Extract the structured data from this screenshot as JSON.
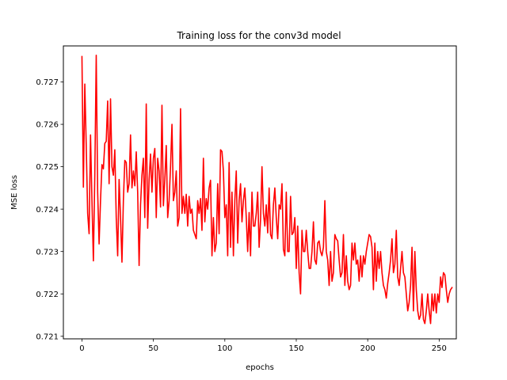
{
  "chart_data": {
    "type": "line",
    "title": "Training loss for the conv3d model",
    "xlabel": "epochs",
    "ylabel": "MSE loss",
    "xlim": [
      -13,
      262
    ],
    "ylim": [
      0.72094,
      0.72785
    ],
    "xticks": [
      0,
      50,
      100,
      150,
      200,
      250
    ],
    "xtick_labels": [
      "0",
      "50",
      "100",
      "150",
      "200",
      "250"
    ],
    "yticks": [
      0.721,
      0.722,
      0.723,
      0.724,
      0.725,
      0.726,
      0.727
    ],
    "ytick_labels": [
      "0.721",
      "0.722",
      "0.723",
      "0.724",
      "0.725",
      "0.726",
      "0.727"
    ],
    "grid": false,
    "legend": "none",
    "series": [
      {
        "color": "#ff0000",
        "x_start": 0,
        "x_step": 1,
        "values": [
          0.7276,
          0.72452,
          0.72695,
          0.7255,
          0.7239,
          0.72342,
          0.72575,
          0.7242,
          0.72278,
          0.7248,
          0.72763,
          0.7244,
          0.72318,
          0.7242,
          0.72505,
          0.72495,
          0.72555,
          0.7256,
          0.72655,
          0.7246,
          0.7266,
          0.725,
          0.7248,
          0.7254,
          0.7238,
          0.7229,
          0.7247,
          0.7238,
          0.72275,
          0.7242,
          0.72515,
          0.7251,
          0.7244,
          0.7246,
          0.72575,
          0.7245,
          0.7249,
          0.72455,
          0.72535,
          0.7244,
          0.72267,
          0.7241,
          0.7248,
          0.7252,
          0.7238,
          0.72648,
          0.72355,
          0.7247,
          0.7253,
          0.7244,
          0.7252,
          0.72543,
          0.7238,
          0.7252,
          0.7249,
          0.72405,
          0.72645,
          0.72408,
          0.7247,
          0.7255,
          0.7238,
          0.7242,
          0.725,
          0.726,
          0.7242,
          0.7244,
          0.7249,
          0.7236,
          0.7238,
          0.72637,
          0.7239,
          0.7243,
          0.7239,
          0.72435,
          0.7236,
          0.7243,
          0.7239,
          0.724,
          0.7235,
          0.7234,
          0.7233,
          0.7242,
          0.7239,
          0.72425,
          0.7235,
          0.7252,
          0.7237,
          0.72425,
          0.724,
          0.7245,
          0.72468,
          0.7229,
          0.7238,
          0.723,
          0.7232,
          0.7246,
          0.72342,
          0.7254,
          0.72536,
          0.7249,
          0.7238,
          0.7241,
          0.7229,
          0.7251,
          0.7231,
          0.7244,
          0.7229,
          0.7242,
          0.7249,
          0.7232,
          0.7242,
          0.7246,
          0.7237,
          0.7242,
          0.7245,
          0.7238,
          0.723,
          0.72392,
          0.7229,
          0.7244,
          0.7236,
          0.7236,
          0.7239,
          0.7244,
          0.7231,
          0.72375,
          0.725,
          0.7239,
          0.7236,
          0.7241,
          0.72344,
          0.7245,
          0.7234,
          0.7233,
          0.7241,
          0.7245,
          0.7238,
          0.7233,
          0.7241,
          0.724,
          0.7246,
          0.72305,
          0.7229,
          0.7244,
          0.723,
          0.723,
          0.7243,
          0.7234,
          0.72345,
          0.7238,
          0.7226,
          0.7236,
          0.7225,
          0.722,
          0.7235,
          0.723,
          0.723,
          0.7235,
          0.723,
          0.7226,
          0.7226,
          0.723,
          0.7237,
          0.7228,
          0.7227,
          0.7232,
          0.72325,
          0.723,
          0.7229,
          0.7231,
          0.7242,
          0.723,
          0.7228,
          0.7222,
          0.723,
          0.7223,
          0.7225,
          0.7234,
          0.7233,
          0.72325,
          0.7228,
          0.7224,
          0.7225,
          0.7234,
          0.7222,
          0.7229,
          0.7223,
          0.7221,
          0.7222,
          0.7232,
          0.7228,
          0.7232,
          0.7227,
          0.7228,
          0.7223,
          0.7229,
          0.7224,
          0.7229,
          0.7227,
          0.723,
          0.7232,
          0.7234,
          0.72335,
          0.7231,
          0.7221,
          0.7232,
          0.7223,
          0.723,
          0.7226,
          0.723,
          0.7225,
          0.7222,
          0.7221,
          0.7219,
          0.72225,
          0.7225,
          0.7228,
          0.7233,
          0.7225,
          0.7227,
          0.7235,
          0.7224,
          0.7222,
          0.7226,
          0.723,
          0.7225,
          0.7224,
          0.722,
          0.7216,
          0.7218,
          0.7222,
          0.7231,
          0.7216,
          0.723,
          0.7221,
          0.7216,
          0.7214,
          0.7215,
          0.722,
          0.7214,
          0.7213,
          0.7216,
          0.722,
          0.7216,
          0.7213,
          0.722,
          0.7216,
          0.722,
          0.72155,
          0.722,
          0.7218,
          0.7224,
          0.72215,
          0.7225,
          0.72245,
          0.7221,
          0.7218,
          0.722,
          0.7221,
          0.72215
        ]
      }
    ]
  }
}
